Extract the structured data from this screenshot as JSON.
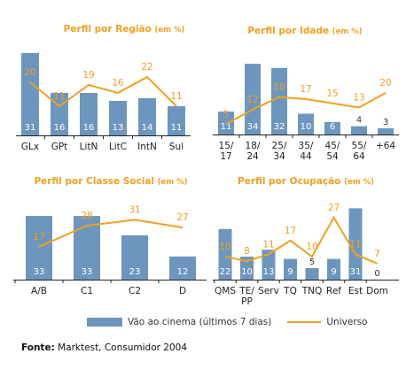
{
  "legend": {
    "bar_label": "Vão ao cinema (últimos 7 dias)",
    "line_label": "Universo"
  },
  "source": {
    "label": "Fonte:",
    "text": "Marktest, Consumidor 2004"
  },
  "colors": {
    "bar": "#6d96bf",
    "line": "#f0a020",
    "title": "#f0a020"
  },
  "chart_data": [
    {
      "type": "bar",
      "title": "Perfil por Região",
      "title_unit": "(em %)",
      "categories": [
        "GLx",
        "GPt",
        "LitN",
        "LitC",
        "IntN",
        "Sul"
      ],
      "series": [
        {
          "name": "Vão ao cinema (últimos 7 dias)",
          "type": "bar",
          "values": [
            31,
            16,
            16,
            13,
            14,
            11
          ]
        },
        {
          "name": "Universo",
          "type": "line",
          "values": [
            20,
            11,
            19,
            16,
            22,
            11
          ]
        }
      ]
    },
    {
      "type": "bar",
      "title": "Perfil por Idade",
      "title_unit": "(em %)",
      "categories": [
        [
          "15/",
          "17"
        ],
        [
          "18/",
          "24"
        ],
        [
          "25/",
          "34"
        ],
        [
          "35/",
          "44"
        ],
        [
          "45/",
          "54"
        ],
        [
          "55/",
          "64"
        ],
        [
          "+64"
        ]
      ],
      "series": [
        {
          "name": "Vão ao cinema (últimos 7 dias)",
          "type": "bar",
          "values": [
            11,
            34,
            32,
            10,
            6,
            4,
            3
          ]
        },
        {
          "name": "Universo",
          "type": "line",
          "values": [
            5,
            12,
            18,
            17,
            15,
            13,
            20
          ]
        }
      ]
    },
    {
      "type": "bar",
      "title": "Perfil por Classe Social",
      "title_unit": "(em %)",
      "categories": [
        "A/B",
        "C1",
        "C2",
        "D"
      ],
      "series": [
        {
          "name": "Vão ao cinema (últimos 7 dias)",
          "type": "bar",
          "values": [
            33,
            33,
            23,
            12
          ]
        },
        {
          "name": "Universo",
          "type": "line",
          "values": [
            17,
            28,
            31,
            27
          ]
        }
      ]
    },
    {
      "type": "bar",
      "title": "Perfil por Ocupação",
      "title_unit": "(em %)",
      "categories": [
        "QMS",
        [
          "TE/",
          "PP"
        ],
        "Serv",
        "TQ",
        "TNQ",
        "Ref",
        "Est",
        "Dom"
      ],
      "series": [
        {
          "name": "Vão ao cinema (últimos 7 dias)",
          "type": "bar",
          "values": [
            22,
            10,
            13,
            9,
            5,
            9,
            31,
            0
          ]
        },
        {
          "name": "Universo",
          "type": "line",
          "values": [
            10,
            8,
            11,
            17,
            10,
            27,
            11,
            7
          ]
        }
      ]
    }
  ]
}
